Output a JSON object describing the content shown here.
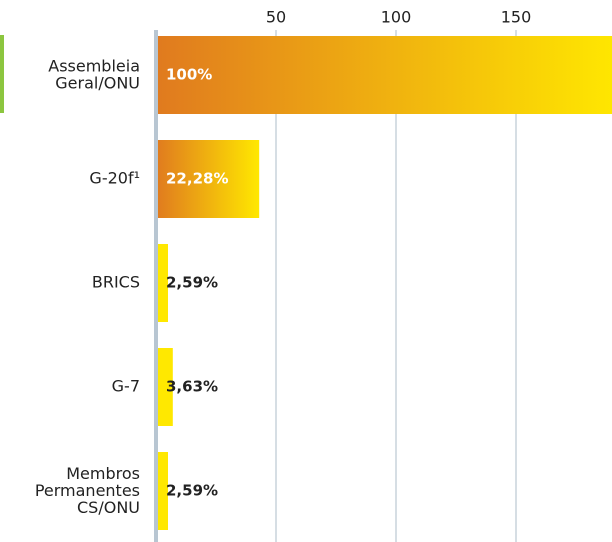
{
  "chart_data": {
    "type": "hbar",
    "categories": [
      "Assembleia\nGeral/ONU",
      "G-20f¹",
      "BRICS",
      "G-7",
      "Membros\nPermanentes\nCS/ONU"
    ],
    "values": [
      193,
      43,
      5,
      7,
      5
    ],
    "value_labels": [
      "100%",
      "22,28%",
      "2,59%",
      "3,63%",
      "2,59%"
    ],
    "xlim": [
      0,
      190
    ],
    "xticks": [
      50,
      100,
      150
    ],
    "grid": true,
    "colors": [
      "#e07a1f",
      "#ffe800"
    ]
  }
}
